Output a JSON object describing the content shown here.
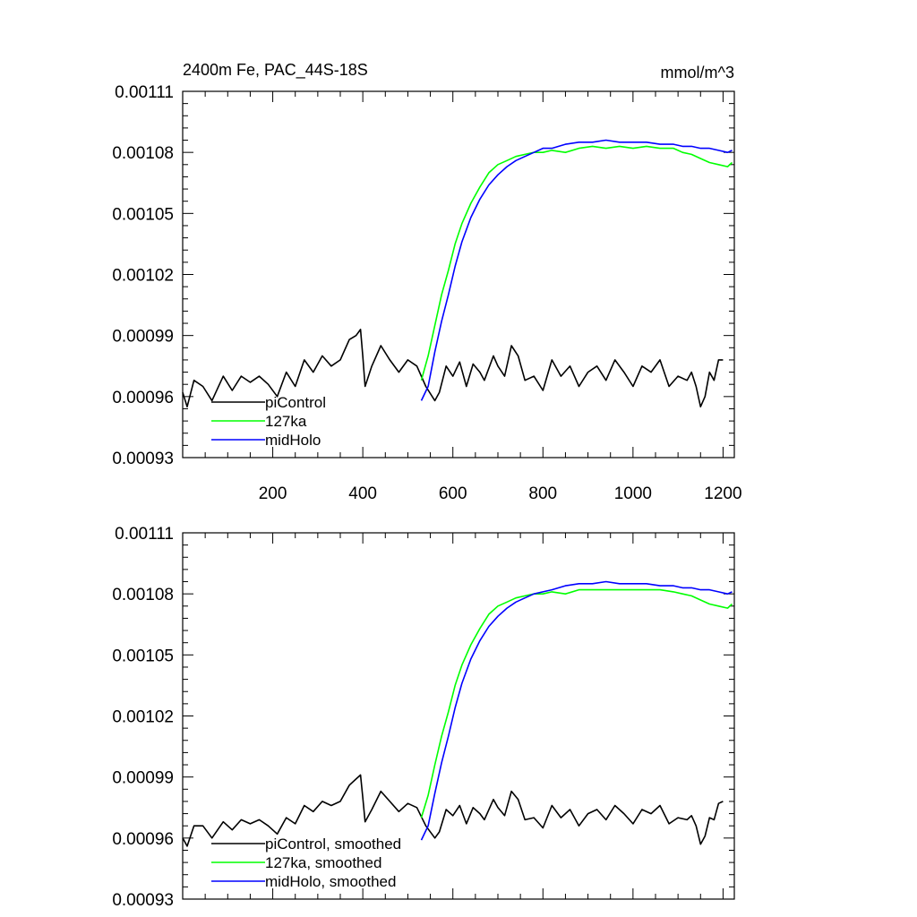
{
  "chart_data": [
    {
      "type": "line",
      "title": "2400m Fe, PAC_44S-18S",
      "units": "mmol/m^3",
      "xlabel": "",
      "ylabel": "",
      "xlim": [
        0,
        1225
      ],
      "ylim": [
        0.00093,
        0.00111
      ],
      "xticks": [
        200,
        400,
        600,
        800,
        1000,
        1200
      ],
      "xtick_labels": [
        "200",
        "400",
        "600",
        "800",
        "1000",
        "1200"
      ],
      "yticks": [
        0.00093,
        0.00096,
        0.00099,
        0.00102,
        0.00105,
        0.00108,
        0.00111
      ],
      "ytick_labels": [
        "0.00093",
        "0.00096",
        "0.00099",
        "0.00102",
        "0.00105",
        "0.00108",
        "0.00111"
      ],
      "grid": false,
      "legend_position": "bottom-left",
      "series": [
        {
          "name": "piControl",
          "color": "#000000",
          "x": [
            0,
            10,
            25,
            45,
            65,
            90,
            110,
            130,
            150,
            170,
            190,
            210,
            230,
            250,
            270,
            290,
            310,
            330,
            350,
            370,
            385,
            395,
            400,
            405,
            420,
            440,
            460,
            480,
            500,
            520,
            540,
            560,
            570,
            585,
            600,
            615,
            630,
            645,
            660,
            670,
            690,
            700,
            715,
            730,
            745,
            760,
            780,
            800,
            820,
            840,
            860,
            880,
            900,
            920,
            940,
            960,
            980,
            1000,
            1020,
            1040,
            1060,
            1080,
            1100,
            1120,
            1130,
            1140,
            1150,
            1160,
            1170,
            1180,
            1190,
            1200
          ],
          "values": [
            0.000962,
            0.000955,
            0.000968,
            0.000965,
            0.000958,
            0.00097,
            0.000963,
            0.00097,
            0.000967,
            0.00097,
            0.000966,
            0.00096,
            0.000972,
            0.000965,
            0.000978,
            0.000972,
            0.00098,
            0.000975,
            0.000978,
            0.000988,
            0.00099,
            0.000993,
            0.00098,
            0.000965,
            0.000975,
            0.000985,
            0.000978,
            0.000972,
            0.000978,
            0.000975,
            0.000965,
            0.000958,
            0.000962,
            0.000975,
            0.00097,
            0.000977,
            0.000965,
            0.000976,
            0.000972,
            0.000968,
            0.00098,
            0.000975,
            0.00097,
            0.000985,
            0.00098,
            0.000968,
            0.00097,
            0.000963,
            0.000978,
            0.00097,
            0.000975,
            0.000965,
            0.000972,
            0.000975,
            0.000968,
            0.000978,
            0.000972,
            0.000965,
            0.000975,
            0.000972,
            0.000978,
            0.000965,
            0.00097,
            0.000968,
            0.000972,
            0.000965,
            0.000955,
            0.00096,
            0.000972,
            0.000968,
            0.000978,
            0.000978
          ]
        },
        {
          "name": "127ka",
          "color": "#00ff00",
          "x": [
            530,
            545,
            560,
            575,
            590,
            605,
            620,
            640,
            660,
            680,
            700,
            720,
            740,
            760,
            780,
            800,
            820,
            850,
            880,
            910,
            940,
            970,
            1000,
            1030,
            1060,
            1090,
            1110,
            1130,
            1150,
            1170,
            1190,
            1210,
            1220
          ],
          "values": [
            0.000968,
            0.00098,
            0.000995,
            0.00101,
            0.001022,
            0.001035,
            0.001045,
            0.001055,
            0.001063,
            0.00107,
            0.001074,
            0.001076,
            0.001078,
            0.001079,
            0.00108,
            0.00108,
            0.001081,
            0.00108,
            0.001082,
            0.001083,
            0.001082,
            0.001083,
            0.001082,
            0.001083,
            0.001082,
            0.001082,
            0.00108,
            0.001079,
            0.001077,
            0.001075,
            0.001074,
            0.001073,
            0.001075
          ]
        },
        {
          "name": "midHolo",
          "color": "#0000ff",
          "x": [
            530,
            545,
            560,
            575,
            590,
            605,
            620,
            640,
            660,
            680,
            700,
            720,
            740,
            760,
            780,
            800,
            820,
            850,
            880,
            910,
            940,
            970,
            1000,
            1030,
            1060,
            1090,
            1110,
            1130,
            1150,
            1170,
            1190,
            1210,
            1220
          ],
          "values": [
            0.000958,
            0.000965,
            0.000982,
            0.000997,
            0.00101,
            0.001024,
            0.001036,
            0.001048,
            0.001057,
            0.001064,
            0.001069,
            0.001073,
            0.001076,
            0.001078,
            0.00108,
            0.001082,
            0.001082,
            0.001084,
            0.001085,
            0.001085,
            0.001086,
            0.001085,
            0.001085,
            0.001085,
            0.001084,
            0.001084,
            0.001083,
            0.001083,
            0.001082,
            0.001082,
            0.001081,
            0.00108,
            0.001081
          ]
        }
      ]
    },
    {
      "type": "line",
      "title": "",
      "xlabel": "",
      "ylabel": "",
      "xlim": [
        0,
        1225
      ],
      "ylim": [
        0.00093,
        0.00111
      ],
      "xticks": [
        200,
        400,
        600,
        800,
        1000,
        1200
      ],
      "yticks": [
        0.00093,
        0.00096,
        0.00099,
        0.00102,
        0.00105,
        0.00108,
        0.00111
      ],
      "ytick_labels": [
        "0.00093",
        "0.00096",
        "0.00099",
        "0.00102",
        "0.00105",
        "0.00108",
        "0.00111"
      ],
      "grid": false,
      "legend_position": "bottom-left",
      "series": [
        {
          "name": "piControl, smoothed",
          "color": "#000000",
          "x": [
            0,
            10,
            25,
            45,
            65,
            90,
            110,
            130,
            150,
            170,
            190,
            210,
            230,
            250,
            270,
            290,
            310,
            330,
            350,
            370,
            385,
            395,
            400,
            405,
            420,
            440,
            460,
            480,
            500,
            520,
            540,
            560,
            570,
            585,
            600,
            615,
            630,
            645,
            660,
            670,
            690,
            700,
            715,
            730,
            745,
            760,
            780,
            800,
            820,
            840,
            860,
            880,
            900,
            920,
            940,
            960,
            980,
            1000,
            1020,
            1040,
            1060,
            1080,
            1100,
            1120,
            1130,
            1140,
            1150,
            1160,
            1170,
            1180,
            1190,
            1200
          ],
          "values": [
            0.00096,
            0.000956,
            0.000966,
            0.000966,
            0.00096,
            0.000968,
            0.000964,
            0.000969,
            0.000967,
            0.000969,
            0.000966,
            0.000962,
            0.00097,
            0.000967,
            0.000976,
            0.000973,
            0.000978,
            0.000976,
            0.000978,
            0.000986,
            0.000989,
            0.000991,
            0.00098,
            0.000968,
            0.000974,
            0.000983,
            0.000978,
            0.000973,
            0.000977,
            0.000975,
            0.000966,
            0.00096,
            0.000963,
            0.000974,
            0.000971,
            0.000976,
            0.000967,
            0.000975,
            0.000972,
            0.000969,
            0.000979,
            0.000975,
            0.000971,
            0.000983,
            0.000979,
            0.000969,
            0.00097,
            0.000965,
            0.000976,
            0.00097,
            0.000974,
            0.000966,
            0.000972,
            0.000974,
            0.000969,
            0.000976,
            0.000972,
            0.000967,
            0.000974,
            0.000972,
            0.000976,
            0.000967,
            0.00097,
            0.000969,
            0.000971,
            0.000966,
            0.000957,
            0.000961,
            0.00097,
            0.000969,
            0.000977,
            0.000978
          ]
        },
        {
          "name": "127ka, smoothed",
          "color": "#00ff00",
          "x": [
            530,
            545,
            560,
            575,
            590,
            605,
            620,
            640,
            660,
            680,
            700,
            720,
            740,
            760,
            780,
            800,
            820,
            850,
            880,
            910,
            940,
            970,
            1000,
            1030,
            1060,
            1090,
            1110,
            1130,
            1150,
            1170,
            1190,
            1210,
            1220
          ],
          "values": [
            0.00097,
            0.000981,
            0.000996,
            0.00101,
            0.001022,
            0.001035,
            0.001045,
            0.001055,
            0.001063,
            0.00107,
            0.001074,
            0.001076,
            0.001078,
            0.001079,
            0.00108,
            0.00108,
            0.001081,
            0.00108,
            0.001082,
            0.001082,
            0.001082,
            0.001082,
            0.001082,
            0.001082,
            0.001082,
            0.001081,
            0.00108,
            0.001079,
            0.001077,
            0.001075,
            0.001074,
            0.001073,
            0.001075
          ]
        },
        {
          "name": "midHolo, smoothed",
          "color": "#0000ff",
          "x": [
            530,
            545,
            560,
            575,
            590,
            605,
            620,
            640,
            660,
            680,
            700,
            720,
            740,
            760,
            780,
            800,
            820,
            850,
            880,
            910,
            940,
            970,
            1000,
            1030,
            1060,
            1090,
            1110,
            1130,
            1150,
            1170,
            1190,
            1210,
            1220
          ],
          "values": [
            0.000959,
            0.000966,
            0.000982,
            0.000997,
            0.00101,
            0.001024,
            0.001036,
            0.001048,
            0.001057,
            0.001064,
            0.001069,
            0.001073,
            0.001076,
            0.001078,
            0.00108,
            0.001081,
            0.001082,
            0.001084,
            0.001085,
            0.001085,
            0.001086,
            0.001085,
            0.001085,
            0.001085,
            0.001084,
            0.001084,
            0.001083,
            0.001083,
            0.001082,
            0.001082,
            0.001081,
            0.00108,
            0.001081
          ]
        }
      ]
    }
  ]
}
